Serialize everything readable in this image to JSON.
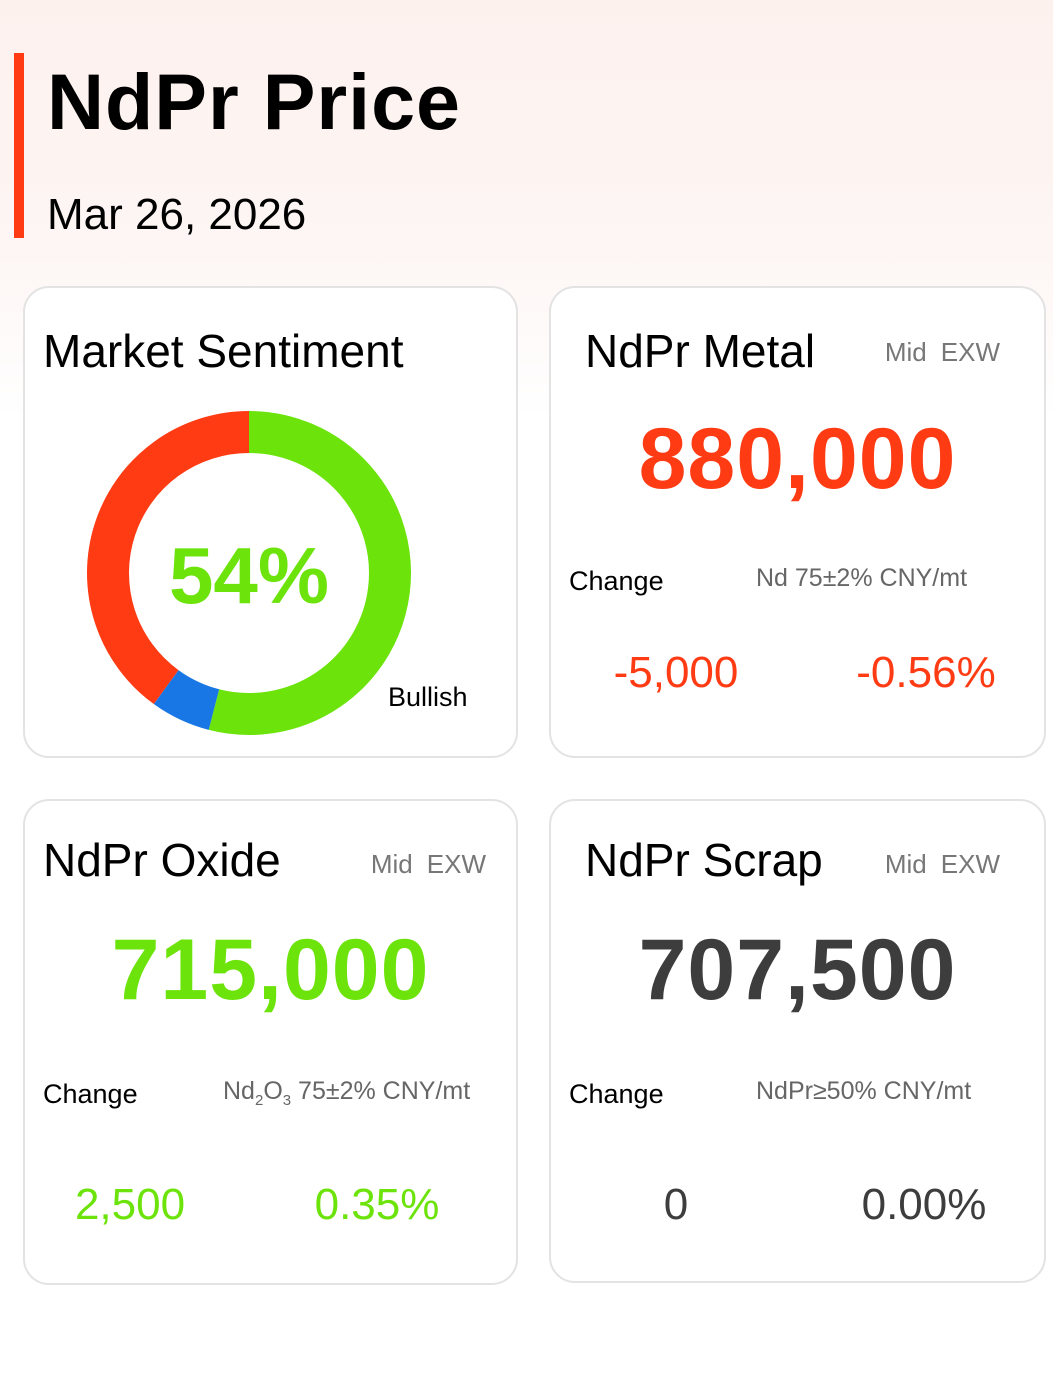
{
  "header": {
    "title": "NdPr Price",
    "date": "Mar 26, 2026"
  },
  "sentiment": {
    "title": "Market Sentiment",
    "percent_label": "54%",
    "bullish_label": "Bullish",
    "bullish_share": 0.54,
    "neutral_share": 0.06,
    "bearish_share": 0.4,
    "colors": {
      "bullish": "#6ce30a",
      "neutral": "#1877e5",
      "bearish": "#ff3b14"
    }
  },
  "metal": {
    "title": "NdPr Metal",
    "tag_mid": "Mid",
    "tag_exw": "EXW",
    "price": "880,000",
    "change_label": "Change",
    "spec": "Nd 75±2% CNY/mt",
    "change_abs": "-5,000",
    "change_pct": "-0.56%"
  },
  "oxide": {
    "title": "NdPr Oxide",
    "tag_mid": "Mid",
    "tag_exw": "EXW",
    "price": "715,000",
    "change_label": "Change",
    "spec_prefix": "Nd",
    "spec_sub1": "2",
    "spec_mid": "O",
    "spec_sub2": "3",
    "spec_suffix": " 75±2% CNY/mt",
    "change_abs": "2,500",
    "change_pct": "0.35%"
  },
  "scrap": {
    "title": "NdPr Scrap",
    "tag_mid": "Mid",
    "tag_exw": "EXW",
    "price": "707,500",
    "change_label": "Change",
    "spec": "NdPr≥50% CNY/mt",
    "change_abs": "0",
    "change_pct": "0.00%"
  }
}
